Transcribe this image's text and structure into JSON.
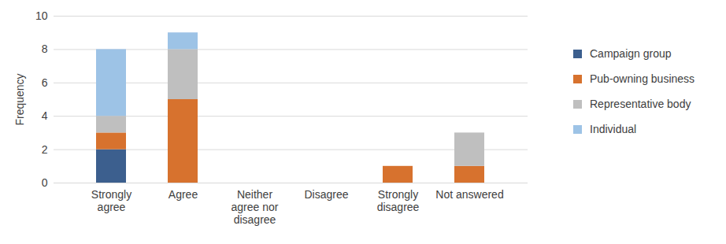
{
  "chart_data": {
    "type": "bar",
    "stacked": true,
    "categories": [
      "Strongly agree",
      "Agree",
      "Neither agree nor disagree",
      "Disagree",
      "Strongly disagree",
      "Not answered"
    ],
    "series": [
      {
        "name": "Campaign group",
        "color": "#3c5f8e",
        "values": [
          2,
          0,
          0,
          0,
          0,
          0
        ]
      },
      {
        "name": "Pub-owning business",
        "color": "#d7722e",
        "values": [
          1,
          5,
          0,
          0,
          1,
          1
        ]
      },
      {
        "name": "Representative body",
        "color": "#bfbfbf",
        "values": [
          1,
          3,
          0,
          0,
          0,
          2
        ]
      },
      {
        "name": "Individual",
        "color": "#9dc3e6",
        "values": [
          4,
          1,
          0,
          0,
          0,
          0
        ]
      }
    ],
    "y_label": "Frequency",
    "ylim": [
      0,
      10
    ],
    "yticks": [
      0,
      2,
      4,
      6,
      8,
      10
    ],
    "grid": true,
    "legend": "right"
  }
}
